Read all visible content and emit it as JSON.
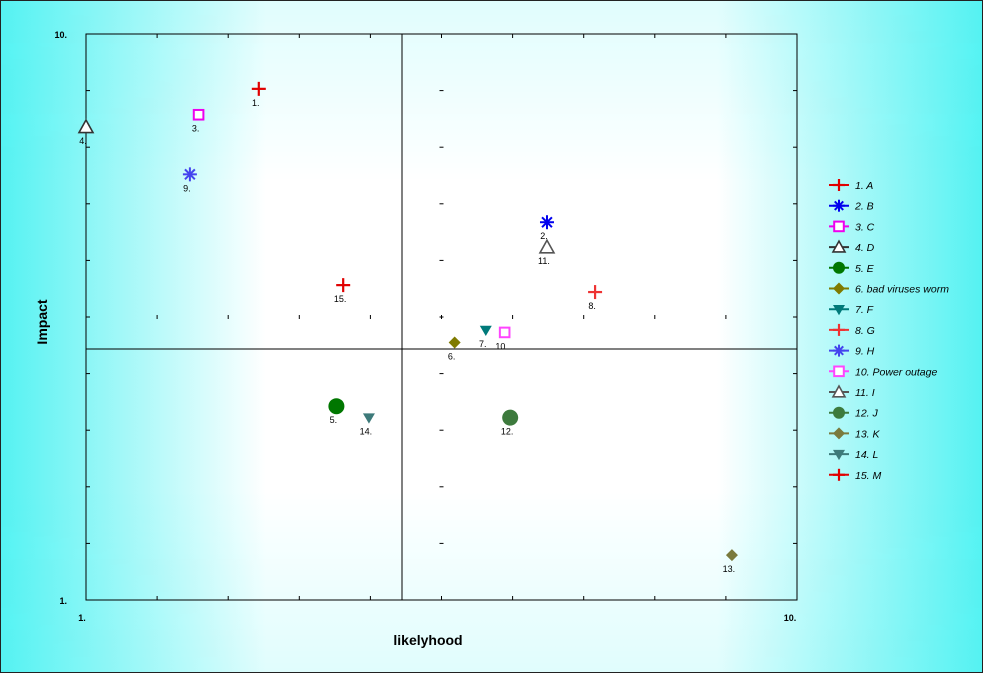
{
  "chart_data": {
    "type": "scatter",
    "title": "",
    "xlabel": "likelyhood",
    "ylabel": "Impact",
    "xlim": [
      1,
      10
    ],
    "ylim": [
      1,
      10
    ],
    "x_scale": "log",
    "y_scale": "log",
    "x_ticks": [
      "1.",
      "10."
    ],
    "y_ticks": [
      "1.",
      "10."
    ],
    "quadrant_lines": true,
    "legend_position": "right",
    "series": [
      {
        "name": "1. A",
        "label": "1.",
        "x": 1.75,
        "y": 8.0,
        "marker": "plus",
        "color": "#e00000"
      },
      {
        "name": "2. B",
        "label": "2.",
        "x": 4.45,
        "y": 4.65,
        "marker": "asterisk",
        "color": "#0000ee"
      },
      {
        "name": "3. C",
        "label": "3.",
        "x": 1.44,
        "y": 7.2,
        "marker": "square-open",
        "color": "#ee00ee"
      },
      {
        "name": "4. D",
        "label": "4.",
        "x": 1.0,
        "y": 6.85,
        "marker": "triangle-open",
        "color": "#333333"
      },
      {
        "name": "5. E",
        "label": "5.",
        "x": 2.25,
        "y": 2.2,
        "marker": "circle",
        "color": "#007700"
      },
      {
        "name": "6. bad viruses worm",
        "label": "6.",
        "x": 3.3,
        "y": 2.85,
        "marker": "diamond",
        "color": "#7f7a00"
      },
      {
        "name": "7. F",
        "label": "7.",
        "x": 3.65,
        "y": 3.0,
        "marker": "triangle-down",
        "color": "#007a7a"
      },
      {
        "name": "8. G",
        "label": "8.",
        "x": 5.2,
        "y": 3.5,
        "marker": "plus",
        "color": "#ee3333"
      },
      {
        "name": "9. H",
        "label": "9.",
        "x": 1.4,
        "y": 5.65,
        "marker": "asterisk",
        "color": "#4444ee"
      },
      {
        "name": "10. Power outage",
        "label": "10.",
        "x": 3.88,
        "y": 2.97,
        "marker": "square-open",
        "color": "#ff44ff"
      },
      {
        "name": "11. I",
        "label": "11.",
        "x": 4.45,
        "y": 4.2,
        "marker": "triangle-open",
        "color": "#555555"
      },
      {
        "name": "12. J",
        "label": "12.",
        "x": 3.95,
        "y": 2.1,
        "marker": "circle",
        "color": "#3d7a3d"
      },
      {
        "name": "13. K",
        "label": "13.",
        "x": 8.1,
        "y": 1.2,
        "marker": "diamond",
        "color": "#7a7a3d"
      },
      {
        "name": "14. L",
        "label": "14.",
        "x": 2.5,
        "y": 2.1,
        "marker": "triangle-down",
        "color": "#3d7a7a"
      },
      {
        "name": "15. M",
        "label": "15.",
        "x": 2.3,
        "y": 3.6,
        "marker": "plus",
        "color": "#e00000"
      }
    ]
  },
  "colors": {
    "background_glow": "#55f2f2",
    "plot_center": "#ffffff"
  }
}
